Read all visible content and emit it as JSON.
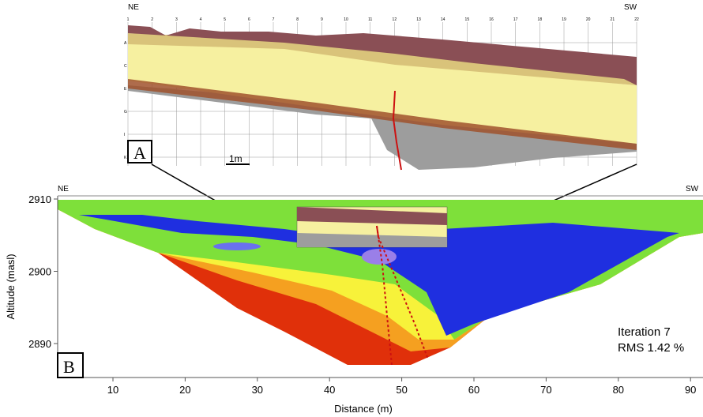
{
  "panel_a": {
    "label": "A",
    "left_dir": "NE",
    "right_dir": "SW",
    "columns": [
      "1",
      "2",
      "3",
      "4",
      "5",
      "6",
      "7",
      "8",
      "9",
      "10",
      "11",
      "12",
      "13",
      "14",
      "15",
      "16",
      "17",
      "18",
      "19",
      "20",
      "21",
      "22"
    ],
    "rows": [
      "A",
      "C",
      "E",
      "G",
      "I",
      "K"
    ],
    "scale_bar": "1m",
    "colors": {
      "soil": "#8a4f55",
      "sand": "#d9c37a",
      "loess": "#f6f0a0",
      "gravel": "#9a9a9a",
      "clay": "#a0522d",
      "fault": "#cc1111"
    }
  },
  "panel_b": {
    "label": "B",
    "left_dir": "NE",
    "right_dir": "SW",
    "ylabel": "Altitude (masl)",
    "xlabel": "Distance (m)",
    "yticks": [
      "2910",
      "2900",
      "2890"
    ],
    "xticks": [
      "10",
      "20",
      "30",
      "40",
      "50",
      "60",
      "70",
      "80",
      "90"
    ],
    "xlim": [
      2,
      92
    ],
    "ylim": [
      2885.5,
      2911
    ],
    "iteration": "Iteration 7",
    "rms": "RMS 1.42 %",
    "colors": {
      "very_low": "#9a7fe8",
      "low": "#1f2fe0",
      "mid_low": "#3a60e8",
      "mid": "#7ee03a",
      "mid_high": "#f7f23a",
      "high": "#f5a020",
      "very_high": "#e0300a"
    }
  }
}
